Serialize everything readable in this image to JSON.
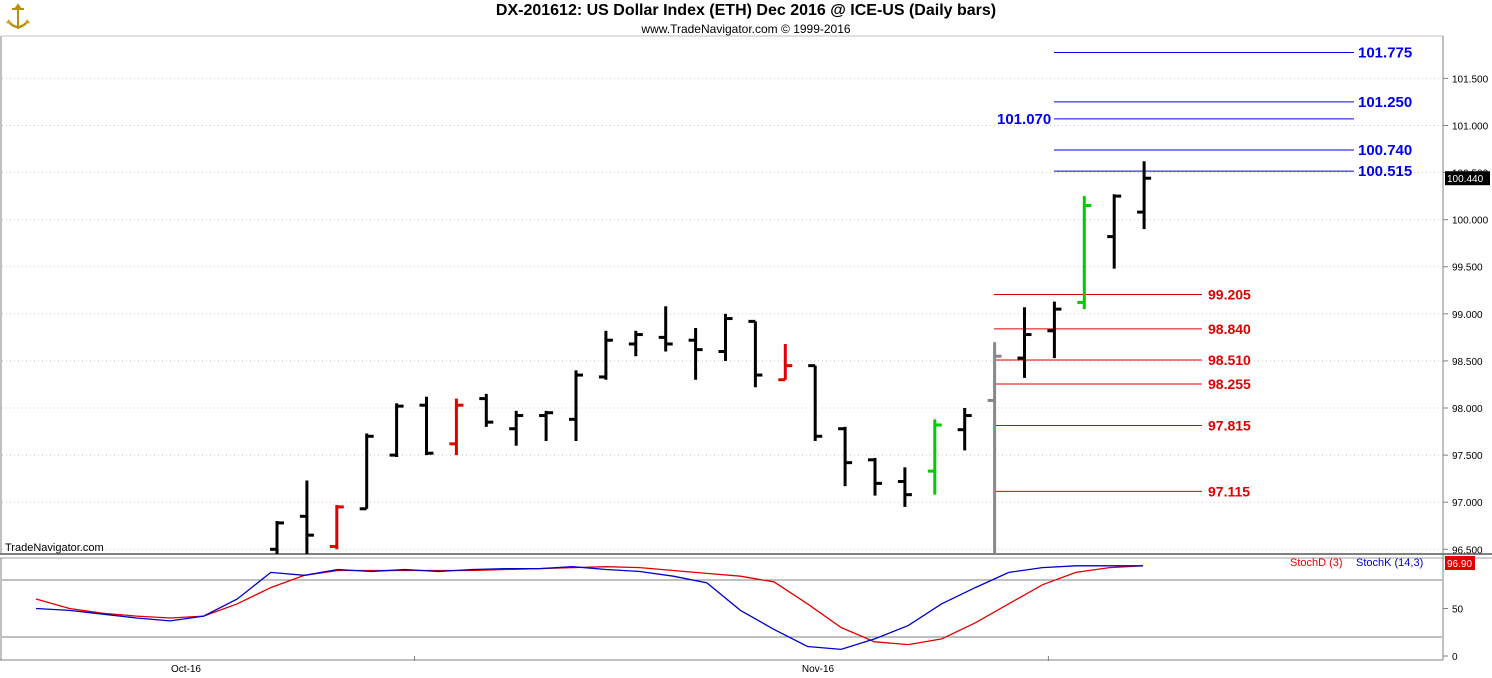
{
  "header": {
    "title": "DX-201612:  US Dollar Index (ETH) Dec 2016 @ ICE-US  (Daily bars)",
    "subtitle": "www.TradeNavigator.com © 1999-2016"
  },
  "watermark": "TradeNavigator.com",
  "colors": {
    "blue": "#0000ee",
    "red": "#e00000",
    "green": "#00cc00",
    "stochD": "#e00000",
    "stochK": "#0000cc",
    "bar": "#000000"
  },
  "chart_data": [
    {
      "type": "ohlc",
      "title": "DX-201612:  US Dollar Index (ETH) Dec 2016 @ ICE-US  (Daily bars)",
      "ylim": [
        96.45,
        101.95
      ],
      "yticks": [
        "96.500",
        "97.000",
        "97.500",
        "98.000",
        "98.500",
        "99.000",
        "99.500",
        "100.000",
        "100.500",
        "101.000",
        "101.500"
      ],
      "last_price": "100.440",
      "x_labels": [
        {
          "label": "Oct-16",
          "index": 4.6
        },
        {
          "label": "Nov-16",
          "index": 25.8
        }
      ],
      "bars": [
        {
          "o": 96.5,
          "h": 96.8,
          "l": 96.4,
          "c": 96.78,
          "color": "#000000"
        },
        {
          "o": 96.85,
          "h": 97.23,
          "l": 96.4,
          "c": 96.65,
          "color": "#000000"
        },
        {
          "o": 96.53,
          "h": 96.97,
          "l": 96.5,
          "c": 96.95,
          "color": "#e00000"
        },
        {
          "o": 96.93,
          "h": 97.73,
          "l": 96.93,
          "c": 97.7,
          "color": "#000000"
        },
        {
          "o": 97.5,
          "h": 98.05,
          "l": 97.48,
          "c": 98.02,
          "color": "#000000"
        },
        {
          "o": 98.03,
          "h": 98.12,
          "l": 97.5,
          "c": 97.52,
          "color": "#000000"
        },
        {
          "o": 97.62,
          "h": 98.1,
          "l": 97.5,
          "c": 98.03,
          "color": "#e00000"
        },
        {
          "o": 98.1,
          "h": 98.15,
          "l": 97.8,
          "c": 97.85,
          "color": "#000000"
        },
        {
          "o": 97.78,
          "h": 97.97,
          "l": 97.6,
          "c": 97.92,
          "color": "#000000"
        },
        {
          "o": 97.92,
          "h": 97.97,
          "l": 97.65,
          "c": 97.95,
          "color": "#000000"
        },
        {
          "o": 97.88,
          "h": 98.4,
          "l": 97.65,
          "c": 98.35,
          "color": "#000000"
        },
        {
          "o": 98.33,
          "h": 98.82,
          "l": 98.3,
          "c": 98.72,
          "color": "#000000"
        },
        {
          "o": 98.68,
          "h": 98.82,
          "l": 98.55,
          "c": 98.78,
          "color": "#000000"
        },
        {
          "o": 98.75,
          "h": 99.08,
          "l": 98.6,
          "c": 98.68,
          "color": "#000000"
        },
        {
          "o": 98.72,
          "h": 98.85,
          "l": 98.3,
          "c": 98.62,
          "color": "#000000"
        },
        {
          "o": 98.6,
          "h": 99.0,
          "l": 98.5,
          "c": 98.95,
          "color": "#000000"
        },
        {
          "o": 98.92,
          "h": 98.92,
          "l": 98.22,
          "c": 98.35,
          "color": "#000000"
        },
        {
          "o": 98.3,
          "h": 98.68,
          "l": 98.3,
          "c": 98.45,
          "color": "#e00000"
        },
        {
          "o": 98.45,
          "h": 98.45,
          "l": 97.65,
          "c": 97.7,
          "color": "#000000"
        },
        {
          "o": 97.78,
          "h": 97.8,
          "l": 97.17,
          "c": 97.42,
          "color": "#000000"
        },
        {
          "o": 97.45,
          "h": 97.47,
          "l": 97.07,
          "c": 97.2,
          "color": "#000000"
        },
        {
          "o": 97.22,
          "h": 97.37,
          "l": 96.95,
          "c": 97.08,
          "color": "#000000"
        },
        {
          "o": 97.33,
          "h": 97.88,
          "l": 97.08,
          "c": 97.82,
          "color": "#00cc00"
        },
        {
          "o": 97.77,
          "h": 98.0,
          "l": 97.55,
          "c": 97.92,
          "color": "#000000"
        },
        {
          "o": 98.08,
          "h": 98.7,
          "l": 96.45,
          "c": 98.55,
          "color": "#888888"
        },
        {
          "o": 98.53,
          "h": 99.07,
          "l": 98.32,
          "c": 98.78,
          "color": "#000000"
        },
        {
          "o": 98.82,
          "h": 99.13,
          "l": 98.53,
          "c": 99.05,
          "color": "#000000"
        },
        {
          "o": 99.12,
          "h": 100.25,
          "l": 99.05,
          "c": 100.15,
          "color": "#00cc00"
        },
        {
          "o": 99.82,
          "h": 100.27,
          "l": 99.48,
          "c": 100.25,
          "color": "#000000"
        },
        {
          "o": 100.08,
          "h": 100.62,
          "l": 99.9,
          "c": 100.44,
          "color": "#000000"
        }
      ],
      "levels_blue": [
        {
          "value": 101.775,
          "label": "101.775"
        },
        {
          "value": 101.25,
          "label": "101.250"
        },
        {
          "value": 101.07,
          "label": "101.070"
        },
        {
          "value": 100.74,
          "label": "100.740"
        },
        {
          "value": 100.515,
          "label": "100.515"
        }
      ],
      "levels_red": [
        {
          "value": 99.205,
          "label": "99.205"
        },
        {
          "value": 98.84,
          "label": "98.840"
        },
        {
          "value": 98.51,
          "label": "98.510"
        },
        {
          "value": 98.255,
          "label": "98.255"
        },
        {
          "value": 97.815,
          "label": "97.815"
        },
        {
          "value": 97.115,
          "label": "97.115"
        }
      ]
    },
    {
      "type": "line",
      "ylim": [
        0,
        100
      ],
      "yticks": [
        "0",
        "50"
      ],
      "hlines": [
        20,
        80
      ],
      "last_value": "96.90",
      "series": [
        {
          "name": "StochD (3)",
          "color": "#e00000",
          "values": [
            60,
            50,
            45,
            42,
            40,
            42,
            55,
            72,
            85,
            90,
            90,
            90,
            90,
            90,
            91,
            92,
            93,
            94,
            93,
            90,
            87,
            84,
            78,
            55,
            30,
            15,
            12,
            18,
            35,
            55,
            75,
            88,
            93,
            95
          ]
        },
        {
          "name": "StochK (14,3)",
          "color": "#0000cc",
          "values": [
            50,
            48,
            44,
            40,
            37,
            42,
            60,
            88,
            85,
            91,
            89,
            91,
            89,
            91,
            92,
            92,
            94,
            91,
            89,
            84,
            77,
            48,
            28,
            10,
            7,
            18,
            32,
            55,
            72,
            88,
            93,
            95,
            95,
            95
          ]
        }
      ]
    }
  ]
}
